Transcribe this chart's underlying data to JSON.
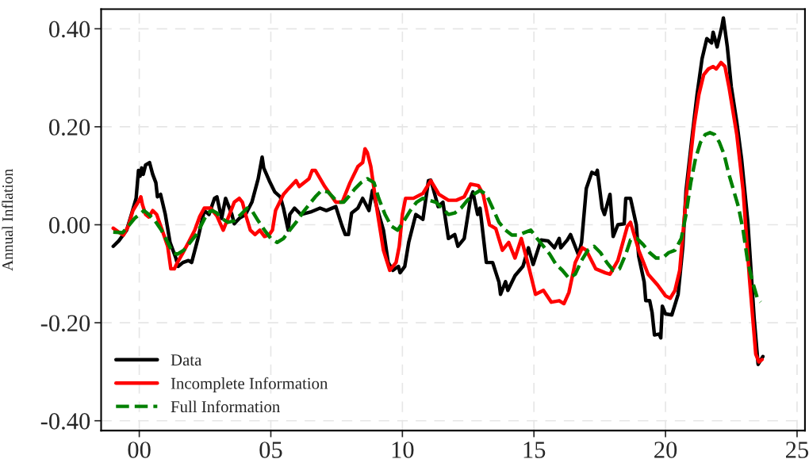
{
  "chart_data": {
    "type": "line",
    "ylabel": "Annual Inflation",
    "xlim": [
      -1.45,
      25.3
    ],
    "ylim": [
      -0.42,
      0.44
    ],
    "xticks": [
      {
        "value": 0,
        "label": "00"
      },
      {
        "value": 5,
        "label": "05"
      },
      10,
      15,
      20,
      25
    ],
    "yticks": [
      {
        "value": 0.4,
        "label": "0.40"
      },
      {
        "value": 0.2,
        "label": "0.20"
      },
      {
        "value": 0,
        "label": "0.00"
      },
      {
        "value": -0.2,
        "label": "-0.20"
      },
      {
        "value": -0.4,
        "label": "-0.40"
      }
    ],
    "grid": true,
    "legend": "bottom left",
    "marker": "none",
    "series": [
      {
        "name": "Data",
        "color": "#000000",
        "line_style": "solid",
        "x": [
          -0.99,
          -0.78,
          -0.48,
          -0.3,
          -0.12,
          -0.03,
          0.03,
          0.09,
          0.15,
          0.24,
          0.39,
          0.51,
          0.63,
          0.69,
          0.81,
          0.99,
          1.17,
          1.39,
          1.48,
          1.66,
          1.87,
          1.99,
          2.23,
          2.47,
          2.65,
          2.86,
          2.95,
          3.13,
          3.28,
          3.52,
          3.61,
          3.8,
          4.04,
          4.28,
          4.52,
          4.67,
          4.73,
          4.94,
          5.15,
          5.36,
          5.48,
          5.66,
          5.72,
          5.9,
          6.14,
          6.51,
          6.87,
          7.11,
          7.47,
          7.71,
          7.83,
          7.95,
          8.07,
          8.31,
          8.49,
          8.73,
          8.86,
          9.04,
          9.28,
          9.46,
          9.64,
          9.85,
          9.91,
          10.09,
          10.24,
          10.51,
          10.78,
          10.99,
          11.08,
          11.36,
          11.54,
          11.75,
          11.99,
          12.11,
          12.35,
          12.59,
          12.68,
          12.86,
          12.95,
          13.19,
          13.43,
          13.67,
          13.73,
          13.92,
          14.01,
          14.28,
          14.58,
          14.79,
          14.97,
          15.27,
          15.54,
          15.78,
          15.96,
          16.02,
          16.27,
          16.39,
          16.69,
          16.81,
          16.99,
          17.2,
          17.35,
          17.41,
          17.59,
          17.68,
          17.89,
          18.01,
          18.19,
          18.43,
          18.49,
          18.67,
          18.89,
          18.98,
          19.19,
          19.25,
          19.4,
          19.49,
          19.58,
          19.76,
          19.82,
          19.88,
          20.0,
          20.24,
          20.48,
          20.66,
          20.78,
          21.02,
          21.2,
          21.39,
          21.57,
          21.75,
          21.81,
          21.96,
          22.14,
          22.2,
          22.35,
          22.5,
          22.71,
          22.89,
          23.13,
          23.37,
          23.52,
          23.7
        ],
        "values": [
          -0.044,
          -0.033,
          -0.011,
          0.021,
          0.054,
          0.111,
          0.099,
          0.116,
          0.103,
          0.122,
          0.127,
          0.103,
          0.086,
          0.057,
          0.062,
          0.021,
          -0.036,
          -0.068,
          -0.085,
          -0.077,
          -0.073,
          -0.077,
          -0.028,
          0.029,
          0.021,
          0.054,
          0.057,
          0.013,
          0.054,
          0.021,
          0.002,
          0.013,
          0.021,
          0.046,
          0.094,
          0.138,
          0.116,
          0.09,
          0.067,
          0.057,
          0.034,
          -0.011,
          0.021,
          0.034,
          0.021,
          0.026,
          0.034,
          0.029,
          0.037,
          -0.003,
          -0.02,
          -0.02,
          0.024,
          0.034,
          0.054,
          0.029,
          0.07,
          0.034,
          -0.011,
          -0.077,
          -0.093,
          -0.085,
          -0.098,
          -0.085,
          -0.036,
          0.021,
          0.011,
          0.09,
          0.091,
          0.037,
          0.046,
          -0.028,
          -0.02,
          -0.044,
          -0.028,
          0.054,
          0.067,
          0.021,
          0.034,
          -0.077,
          -0.077,
          -0.117,
          -0.142,
          -0.116,
          -0.134,
          -0.104,
          -0.085,
          -0.047,
          -0.081,
          -0.031,
          -0.033,
          -0.047,
          -0.028,
          -0.047,
          -0.031,
          -0.02,
          -0.061,
          -0.036,
          0.074,
          0.107,
          0.103,
          0.111,
          0.034,
          0.021,
          0.062,
          -0.024,
          0.0,
          0.002,
          0.054,
          0.054,
          0.0,
          -0.064,
          -0.117,
          -0.155,
          -0.155,
          -0.179,
          -0.225,
          -0.223,
          -0.231,
          -0.166,
          -0.182,
          -0.184,
          -0.142,
          -0.044,
          0.07,
          0.184,
          0.266,
          0.339,
          0.38,
          0.371,
          0.393,
          0.363,
          0.404,
          0.422,
          0.363,
          0.282,
          0.209,
          0.135,
          0.005,
          -0.191,
          -0.285,
          -0.269
        ]
      },
      {
        "name": "Incomplete Information",
        "color": "#ff0000",
        "line_style": "solid",
        "x": [
          -0.99,
          -0.78,
          -0.6,
          -0.42,
          -0.24,
          0.0,
          0.06,
          0.12,
          0.24,
          0.36,
          0.51,
          0.66,
          0.87,
          1.08,
          1.2,
          1.33,
          1.45,
          1.63,
          1.87,
          2.11,
          2.29,
          2.47,
          2.71,
          2.95,
          3.19,
          3.43,
          3.61,
          3.8,
          3.92,
          4.04,
          4.22,
          4.4,
          4.58,
          4.76,
          4.94,
          5.06,
          5.18,
          5.48,
          5.66,
          5.96,
          6.08,
          6.45,
          6.57,
          6.69,
          7.05,
          7.47,
          7.71,
          8.01,
          8.31,
          8.49,
          8.58,
          8.67,
          8.8,
          9.04,
          9.28,
          9.52,
          9.76,
          9.88,
          10.0,
          10.12,
          10.42,
          10.78,
          11.08,
          11.39,
          11.75,
          12.05,
          12.35,
          12.59,
          12.89,
          13.07,
          13.31,
          13.55,
          13.8,
          14.04,
          14.28,
          14.52,
          14.76,
          15.06,
          15.36,
          15.66,
          15.96,
          16.14,
          16.33,
          16.57,
          16.84,
          16.99,
          17.35,
          17.71,
          17.89,
          18.19,
          18.55,
          18.67,
          18.98,
          19.34,
          19.7,
          20.0,
          20.18,
          20.36,
          20.54,
          20.78,
          21.08,
          21.27,
          21.45,
          21.63,
          21.81,
          21.93,
          22.11,
          22.26,
          22.41,
          22.71,
          22.95,
          23.19,
          23.43,
          23.55,
          23.67
        ],
        "values": [
          -0.007,
          -0.015,
          -0.021,
          -0.003,
          0.029,
          0.05,
          0.057,
          0.041,
          0.021,
          0.016,
          0.029,
          0.021,
          -0.011,
          -0.044,
          -0.09,
          -0.09,
          -0.077,
          -0.06,
          -0.036,
          -0.011,
          0.016,
          0.034,
          0.034,
          0.018,
          -0.011,
          0.021,
          0.046,
          0.054,
          0.046,
          0.021,
          -0.011,
          -0.02,
          -0.011,
          -0.024,
          -0.02,
          -0.011,
          0.029,
          0.062,
          0.073,
          0.09,
          0.078,
          0.094,
          0.111,
          0.111,
          0.078,
          0.046,
          0.046,
          0.086,
          0.119,
          0.127,
          0.155,
          0.147,
          0.119,
          0.029,
          -0.052,
          -0.093,
          -0.077,
          -0.044,
          0.021,
          0.054,
          0.054,
          0.064,
          0.09,
          0.062,
          0.05,
          0.05,
          0.057,
          0.083,
          0.08,
          0.062,
          0.0,
          -0.008,
          -0.052,
          -0.036,
          -0.068,
          -0.028,
          -0.077,
          -0.142,
          -0.134,
          -0.158,
          -0.155,
          -0.161,
          -0.138,
          -0.077,
          -0.047,
          -0.052,
          -0.09,
          -0.098,
          -0.101,
          -0.073,
          -0.003,
          0.005,
          -0.052,
          -0.101,
          -0.123,
          -0.145,
          -0.15,
          -0.134,
          -0.093,
          0.054,
          0.2,
          0.266,
          0.306,
          0.318,
          0.323,
          0.318,
          0.331,
          0.323,
          0.282,
          0.184,
          0.07,
          -0.109,
          -0.264,
          -0.28,
          -0.275
        ]
      },
      {
        "name": "Full Information",
        "color": "#008000",
        "line_style": "dashed",
        "x": [
          -0.99,
          -0.63,
          -0.42,
          -0.18,
          0.0,
          0.18,
          0.36,
          0.6,
          0.84,
          1.08,
          1.27,
          1.45,
          1.69,
          1.93,
          2.17,
          2.41,
          2.59,
          2.77,
          2.95,
          3.13,
          3.37,
          3.61,
          3.86,
          4.1,
          4.28,
          4.52,
          4.76,
          5.0,
          5.24,
          5.48,
          5.72,
          5.96,
          6.2,
          6.45,
          6.69,
          6.93,
          7.17,
          7.35,
          7.53,
          7.77,
          7.95,
          8.19,
          8.43,
          8.67,
          8.92,
          9.1,
          9.34,
          9.58,
          9.82,
          10.06,
          10.3,
          10.54,
          10.78,
          11.02,
          11.27,
          11.51,
          11.75,
          11.99,
          12.23,
          12.47,
          12.71,
          12.95,
          13.19,
          13.43,
          13.67,
          13.92,
          14.16,
          14.4,
          14.64,
          14.88,
          15.12,
          15.36,
          15.6,
          15.84,
          16.08,
          16.33,
          16.57,
          16.81,
          17.05,
          17.29,
          17.53,
          17.77,
          18.01,
          18.25,
          18.49,
          18.67,
          18.92,
          19.16,
          19.4,
          19.64,
          19.88,
          20.12,
          20.36,
          20.6,
          20.78,
          20.96,
          21.14,
          21.33,
          21.51,
          21.69,
          21.87,
          22.05,
          22.23,
          22.41,
          22.59,
          22.77,
          22.95,
          23.13,
          23.31,
          23.49,
          23.61
        ],
        "values": [
          -0.015,
          -0.016,
          -0.003,
          0.013,
          0.021,
          0.029,
          0.021,
          0.008,
          -0.011,
          -0.036,
          -0.057,
          -0.06,
          -0.052,
          -0.036,
          -0.02,
          0.005,
          0.024,
          0.029,
          0.024,
          0.013,
          0.005,
          0.008,
          0.021,
          0.034,
          0.029,
          0.008,
          -0.011,
          -0.028,
          -0.036,
          -0.028,
          -0.011,
          0.005,
          0.024,
          0.041,
          0.057,
          0.07,
          0.067,
          0.057,
          0.046,
          0.046,
          0.057,
          0.073,
          0.086,
          0.094,
          0.086,
          0.054,
          0.021,
          -0.003,
          -0.011,
          0.008,
          0.029,
          0.046,
          0.054,
          0.05,
          0.046,
          0.034,
          0.021,
          0.024,
          0.034,
          0.05,
          0.062,
          0.07,
          0.062,
          0.034,
          0.005,
          -0.011,
          -0.021,
          -0.021,
          -0.016,
          -0.011,
          -0.028,
          -0.044,
          -0.06,
          -0.081,
          -0.093,
          -0.109,
          -0.101,
          -0.073,
          -0.052,
          -0.044,
          -0.057,
          -0.077,
          -0.093,
          -0.09,
          -0.06,
          -0.031,
          -0.028,
          -0.041,
          -0.057,
          -0.068,
          -0.068,
          -0.057,
          -0.052,
          -0.028,
          0.021,
          0.086,
          0.135,
          0.168,
          0.184,
          0.188,
          0.184,
          0.168,
          0.143,
          0.103,
          0.07,
          0.037,
          -0.011,
          -0.077,
          -0.117,
          -0.15,
          -0.158
        ]
      }
    ]
  }
}
